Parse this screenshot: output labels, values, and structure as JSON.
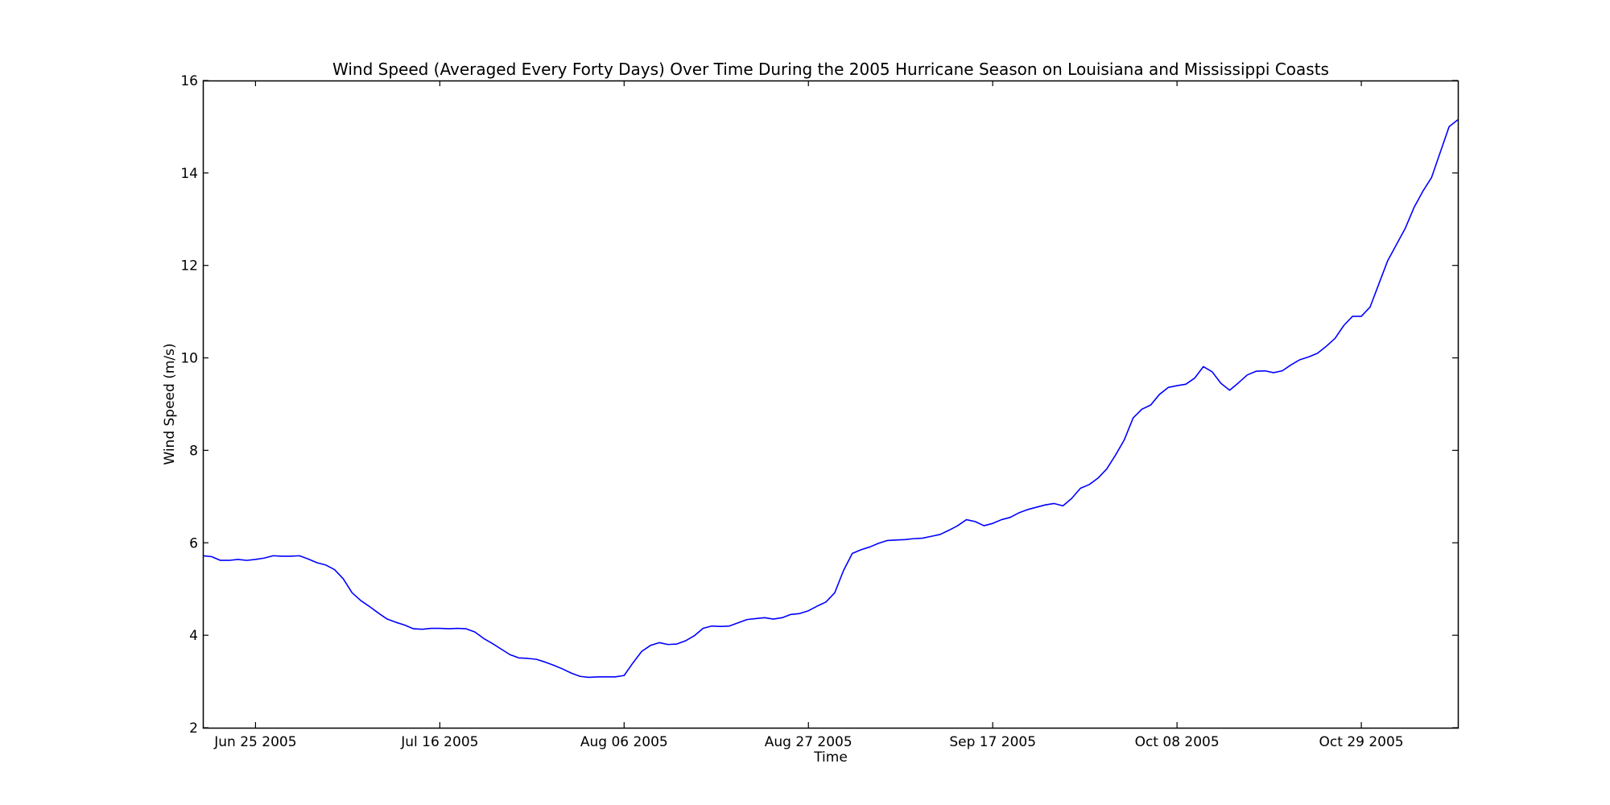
{
  "chart_data": {
    "type": "line",
    "title": "Wind Speed (Averaged Every Forty Days) Over Time During the 2005 Hurricane Season on Louisiana and Mississippi Coasts",
    "xlabel": "Time",
    "ylabel": "Wind Speed (m/s)",
    "xlim": [
      "2005-06-19",
      "2005-11-09"
    ],
    "ylim": [
      2,
      16
    ],
    "xticks": [
      "Jun 25 2005",
      "Jul 16 2005",
      "Aug 06 2005",
      "Aug 27 2005",
      "Sep 17 2005",
      "Oct 08 2005",
      "Oct 29 2005"
    ],
    "yticks": [
      2,
      4,
      6,
      8,
      10,
      12,
      14,
      16
    ],
    "grid": false,
    "line_color": "#0000ff",
    "series": [
      {
        "x": [
          "2005-06-19",
          "2005-06-20",
          "2005-06-21",
          "2005-06-22",
          "2005-06-23",
          "2005-06-24",
          "2005-06-25",
          "2005-06-26",
          "2005-06-27",
          "2005-06-28",
          "2005-06-29",
          "2005-06-30",
          "2005-07-01",
          "2005-07-02",
          "2005-07-03",
          "2005-07-04",
          "2005-07-05",
          "2005-07-06",
          "2005-07-07",
          "2005-07-08",
          "2005-07-09",
          "2005-07-10",
          "2005-07-11",
          "2005-07-12",
          "2005-07-13",
          "2005-07-14",
          "2005-07-15",
          "2005-07-16",
          "2005-07-17",
          "2005-07-18",
          "2005-07-19",
          "2005-07-20",
          "2005-07-21",
          "2005-07-22",
          "2005-07-23",
          "2005-07-24",
          "2005-07-25",
          "2005-07-26",
          "2005-07-27",
          "2005-07-28",
          "2005-07-29",
          "2005-07-30",
          "2005-07-31",
          "2005-08-01",
          "2005-08-02",
          "2005-08-03",
          "2005-08-04",
          "2005-08-05",
          "2005-08-06",
          "2005-08-07",
          "2005-08-08",
          "2005-08-09",
          "2005-08-10",
          "2005-08-11",
          "2005-08-12",
          "2005-08-13",
          "2005-08-14",
          "2005-08-15",
          "2005-08-16",
          "2005-08-17",
          "2005-08-18",
          "2005-08-19",
          "2005-08-20",
          "2005-08-21",
          "2005-08-22",
          "2005-08-23",
          "2005-08-24",
          "2005-08-25",
          "2005-08-26",
          "2005-08-27",
          "2005-08-28",
          "2005-08-29",
          "2005-08-30",
          "2005-08-31",
          "2005-09-01",
          "2005-09-02",
          "2005-09-03",
          "2005-09-04",
          "2005-09-05",
          "2005-09-06",
          "2005-09-07",
          "2005-09-08",
          "2005-09-09",
          "2005-09-10",
          "2005-09-11",
          "2005-09-12",
          "2005-09-13",
          "2005-09-14",
          "2005-09-15",
          "2005-09-16",
          "2005-09-17",
          "2005-09-18",
          "2005-09-19",
          "2005-09-20",
          "2005-09-21",
          "2005-09-22",
          "2005-09-23",
          "2005-09-24",
          "2005-09-25",
          "2005-09-26",
          "2005-09-27",
          "2005-09-28",
          "2005-09-29",
          "2005-09-30",
          "2005-10-01",
          "2005-10-02",
          "2005-10-03",
          "2005-10-04",
          "2005-10-05",
          "2005-10-06",
          "2005-10-07",
          "2005-10-08",
          "2005-10-09",
          "2005-10-10",
          "2005-10-11",
          "2005-10-12",
          "2005-10-13",
          "2005-10-14",
          "2005-10-15",
          "2005-10-16",
          "2005-10-17",
          "2005-10-18",
          "2005-10-19",
          "2005-10-20",
          "2005-10-21",
          "2005-10-22",
          "2005-10-23",
          "2005-10-24",
          "2005-10-25",
          "2005-10-26",
          "2005-10-27",
          "2005-10-28",
          "2005-10-29",
          "2005-10-30",
          "2005-10-31",
          "2005-11-01",
          "2005-11-02",
          "2005-11-03",
          "2005-11-04",
          "2005-11-05",
          "2005-11-06",
          "2005-11-07",
          "2005-11-08",
          "2005-11-09"
        ],
        "y": [
          5.72,
          5.7,
          5.62,
          5.62,
          5.64,
          5.62,
          5.64,
          5.67,
          5.72,
          5.71,
          5.71,
          5.72,
          5.65,
          5.57,
          5.52,
          5.42,
          5.22,
          4.92,
          4.75,
          4.62,
          4.48,
          4.35,
          4.28,
          4.22,
          4.14,
          4.13,
          4.15,
          4.15,
          4.14,
          4.15,
          4.14,
          4.07,
          3.93,
          3.82,
          3.7,
          3.58,
          3.51,
          3.5,
          3.48,
          3.42,
          3.35,
          3.27,
          3.18,
          3.11,
          3.09,
          3.1,
          3.1,
          3.1,
          3.13,
          3.4,
          3.65,
          3.78,
          3.84,
          3.8,
          3.81,
          3.88,
          3.99,
          4.15,
          4.2,
          4.19,
          4.2,
          4.27,
          4.34,
          4.36,
          4.38,
          4.35,
          4.38,
          4.45,
          4.47,
          4.53,
          4.63,
          4.72,
          4.92,
          5.4,
          5.77,
          5.85,
          5.91,
          5.99,
          6.05,
          6.06,
          6.07,
          6.09,
          6.1,
          6.14,
          6.18,
          6.27,
          6.37,
          6.5,
          6.46,
          6.37,
          6.42,
          6.5,
          6.55,
          6.65,
          6.72,
          6.77,
          6.82,
          6.85,
          6.8,
          6.96,
          7.18,
          7.26,
          7.4,
          7.6,
          7.9,
          8.23,
          8.7,
          8.89,
          8.98,
          9.21,
          9.36,
          9.4,
          9.43,
          9.56,
          9.81,
          9.7,
          9.45,
          9.3,
          9.46,
          9.63,
          9.71,
          9.72,
          9.68,
          9.72,
          9.85,
          9.96,
          10.02,
          10.1,
          10.25,
          10.42,
          10.7,
          10.9,
          10.9,
          11.1,
          11.6,
          12.1,
          12.45,
          12.8,
          13.25,
          13.6,
          13.9,
          14.45,
          15.0,
          15.15
        ]
      }
    ]
  }
}
